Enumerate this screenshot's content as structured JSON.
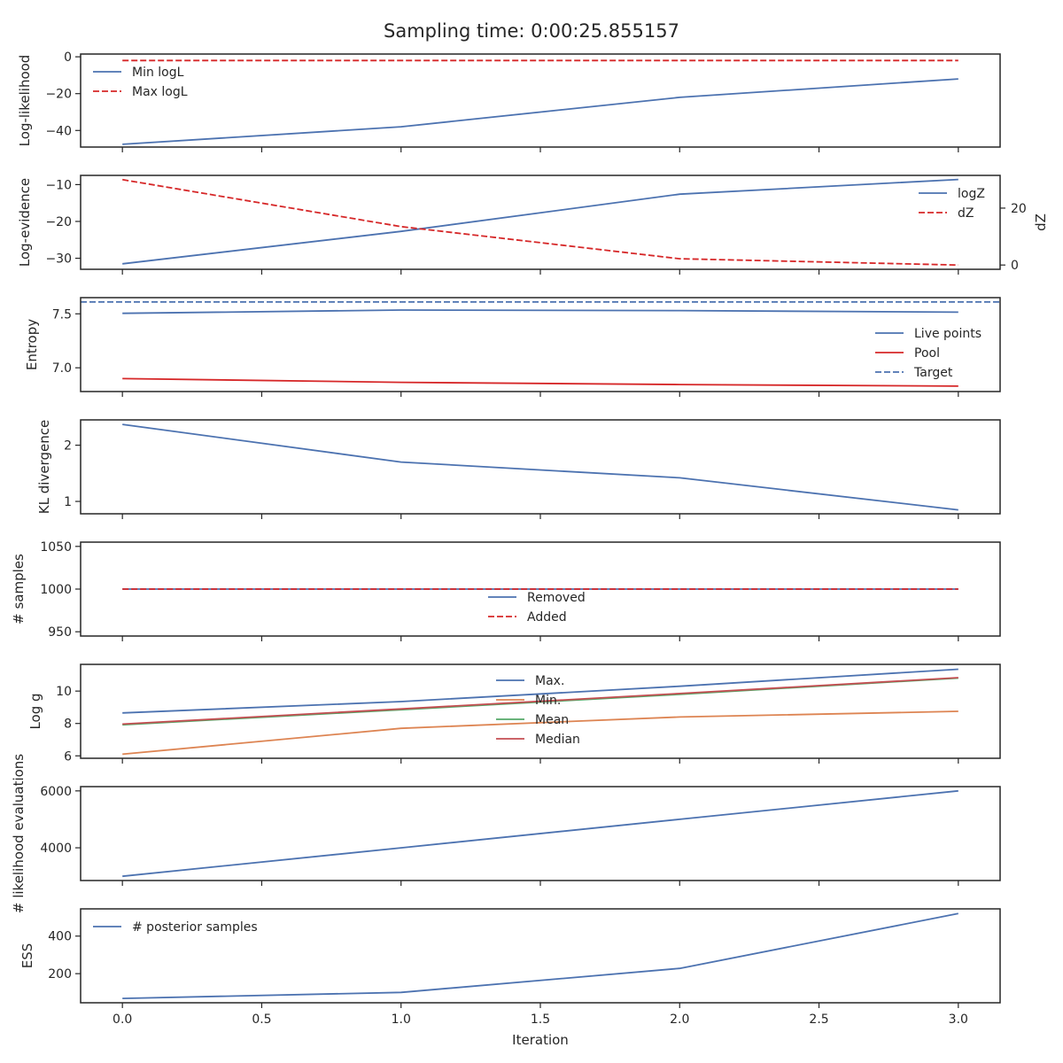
{
  "title": "Sampling time: 0:00:25.855157",
  "xlabel": "Iteration",
  "x_ticks": [
    "0.0",
    "0.5",
    "1.0",
    "1.5",
    "2.0",
    "2.5",
    "3.0"
  ],
  "colors": {
    "blue": "#4c72b0",
    "red": "#d62728",
    "orange": "#dd8452",
    "green": "#55a868",
    "median_red": "#c44e52"
  },
  "chart_data": [
    {
      "type": "line",
      "ylabel": "Log-likelihood",
      "xlim": [
        -0.15,
        3.15
      ],
      "ylim": [
        -49,
        1.5
      ],
      "y_ticks": [
        {
          "v": 0,
          "label": "0"
        },
        {
          "v": -20,
          "label": "−20"
        },
        {
          "v": -40,
          "label": "−40"
        }
      ],
      "legend": {
        "position": "upper-left"
      },
      "series": [
        {
          "name": "Min logL",
          "x": [
            0,
            1,
            2,
            3
          ],
          "y": [
            -47.5,
            -38.0,
            -22.0,
            -12.0
          ],
          "color": "#4c72b0",
          "dash": false
        },
        {
          "name": "Max logL",
          "x": [
            0,
            1,
            2,
            3
          ],
          "y": [
            -2,
            -2,
            -2,
            -2
          ],
          "color": "#d62728",
          "dash": true
        }
      ]
    },
    {
      "type": "line",
      "ylabel": "Log-evidence",
      "ylabel_right": "dZ",
      "xlim": [
        -0.15,
        3.15
      ],
      "ylim": [
        -33,
        -7.5
      ],
      "y_ticks": [
        {
          "v": -10,
          "label": "−10"
        },
        {
          "v": -20,
          "label": "−20"
        },
        {
          "v": -30,
          "label": "−30"
        }
      ],
      "y2lim": [
        -1.5,
        31.5
      ],
      "y2_ticks": [
        {
          "v": 20,
          "label": "20"
        },
        {
          "v": 0,
          "label": "0"
        }
      ],
      "legend": {
        "position": "upper-right"
      },
      "series": [
        {
          "name": "logZ",
          "x": [
            0,
            1,
            2,
            3
          ],
          "y": [
            -31.5,
            -22.7,
            -12.6,
            -8.6
          ],
          "color": "#4c72b0",
          "dash": false
        },
        {
          "name": "dZ",
          "axis": "right",
          "x": [
            0,
            1,
            2,
            3
          ],
          "y": [
            30.0,
            13.5,
            2.2,
            0.0
          ],
          "color": "#d62728",
          "dash": true
        }
      ]
    },
    {
      "type": "line",
      "ylabel": "Entropy",
      "xlim": [
        -0.15,
        3.15
      ],
      "ylim": [
        6.78,
        7.65
      ],
      "y_ticks": [
        {
          "v": 7.5,
          "label": "7.5"
        },
        {
          "v": 7.0,
          "label": "7.0"
        }
      ],
      "legend": {
        "position": "center-right"
      },
      "series": [
        {
          "name": "Live points",
          "x": [
            0,
            1,
            2,
            3
          ],
          "y": [
            7.505,
            7.535,
            7.53,
            7.515
          ],
          "color": "#4c72b0",
          "dash": false
        },
        {
          "name": "Pool",
          "x": [
            0,
            1,
            2,
            3
          ],
          "y": [
            6.9,
            6.865,
            6.845,
            6.83
          ],
          "color": "#d62728",
          "dash": false
        },
        {
          "name": "Target",
          "hline": 7.61,
          "color": "#4c72b0",
          "dash": true
        }
      ]
    },
    {
      "type": "line",
      "ylabel": "KL divergence",
      "xlim": [
        -0.15,
        3.15
      ],
      "ylim": [
        0.78,
        2.45
      ],
      "y_ticks": [
        {
          "v": 2,
          "label": "2"
        },
        {
          "v": 1,
          "label": "1"
        }
      ],
      "series": [
        {
          "name": "",
          "x": [
            0,
            1,
            2,
            3
          ],
          "y": [
            2.37,
            1.7,
            1.42,
            0.85
          ],
          "color": "#4c72b0",
          "dash": false
        }
      ]
    },
    {
      "type": "line",
      "ylabel": "# samples",
      "xlim": [
        -0.15,
        3.15
      ],
      "ylim": [
        945,
        1055
      ],
      "y_ticks": [
        {
          "v": 1050,
          "label": "1050"
        },
        {
          "v": 1000,
          "label": "1000"
        },
        {
          "v": 950,
          "label": "950"
        }
      ],
      "legend": {
        "position": "lower-center"
      },
      "series": [
        {
          "name": "Removed",
          "x": [
            0,
            1,
            2,
            3
          ],
          "y": [
            1000,
            1000,
            1000,
            1000
          ],
          "color": "#4c72b0",
          "dash": false
        },
        {
          "name": "Added",
          "x": [
            0,
            1,
            2,
            3
          ],
          "y": [
            1000,
            1000,
            1000,
            1000
          ],
          "color": "#d62728",
          "dash": true
        }
      ]
    },
    {
      "type": "line",
      "ylabel": "Log g",
      "xlim": [
        -0.15,
        3.15
      ],
      "ylim": [
        5.85,
        11.65
      ],
      "y_ticks": [
        {
          "v": 10,
          "label": "10"
        },
        {
          "v": 8,
          "label": "8"
        },
        {
          "v": 6,
          "label": "6"
        }
      ],
      "legend": {
        "position": "upper-center"
      },
      "series": [
        {
          "name": "Max.",
          "x": [
            0,
            1,
            2,
            3
          ],
          "y": [
            8.65,
            9.35,
            10.3,
            11.35
          ],
          "color": "#4c72b0",
          "dash": false
        },
        {
          "name": "Min.",
          "x": [
            0,
            1,
            2,
            3
          ],
          "y": [
            6.1,
            7.7,
            8.4,
            8.75
          ],
          "color": "#dd8452",
          "dash": false
        },
        {
          "name": "Mean",
          "x": [
            0,
            1,
            2,
            3
          ],
          "y": [
            7.92,
            8.85,
            9.8,
            10.8
          ],
          "color": "#55a868",
          "dash": false
        },
        {
          "name": "Median",
          "x": [
            0,
            1,
            2,
            3
          ],
          "y": [
            7.96,
            8.9,
            9.85,
            10.83
          ],
          "color": "#c44e52",
          "dash": false
        }
      ]
    },
    {
      "type": "line",
      "ylabel": "# likelihood evaluations",
      "xlim": [
        -0.15,
        3.15
      ],
      "ylim": [
        2850,
        6150
      ],
      "y_ticks": [
        {
          "v": 6000,
          "label": "6000"
        },
        {
          "v": 4000,
          "label": "4000"
        }
      ],
      "series": [
        {
          "name": "",
          "x": [
            0,
            1,
            2,
            3
          ],
          "y": [
            3000,
            4000,
            5000,
            6000
          ],
          "color": "#4c72b0",
          "dash": false
        }
      ]
    },
    {
      "type": "line",
      "ylabel": "ESS",
      "xlim": [
        -0.15,
        3.15
      ],
      "ylim": [
        45,
        545
      ],
      "y_ticks": [
        {
          "v": 400,
          "label": "400"
        },
        {
          "v": 200,
          "label": "200"
        }
      ],
      "legend": {
        "position": "upper-left"
      },
      "series": [
        {
          "name": "# posterior samples",
          "x": [
            0,
            1,
            2,
            3
          ],
          "y": [
            68,
            100,
            228,
            520
          ],
          "color": "#4c72b0",
          "dash": false
        }
      ]
    }
  ]
}
